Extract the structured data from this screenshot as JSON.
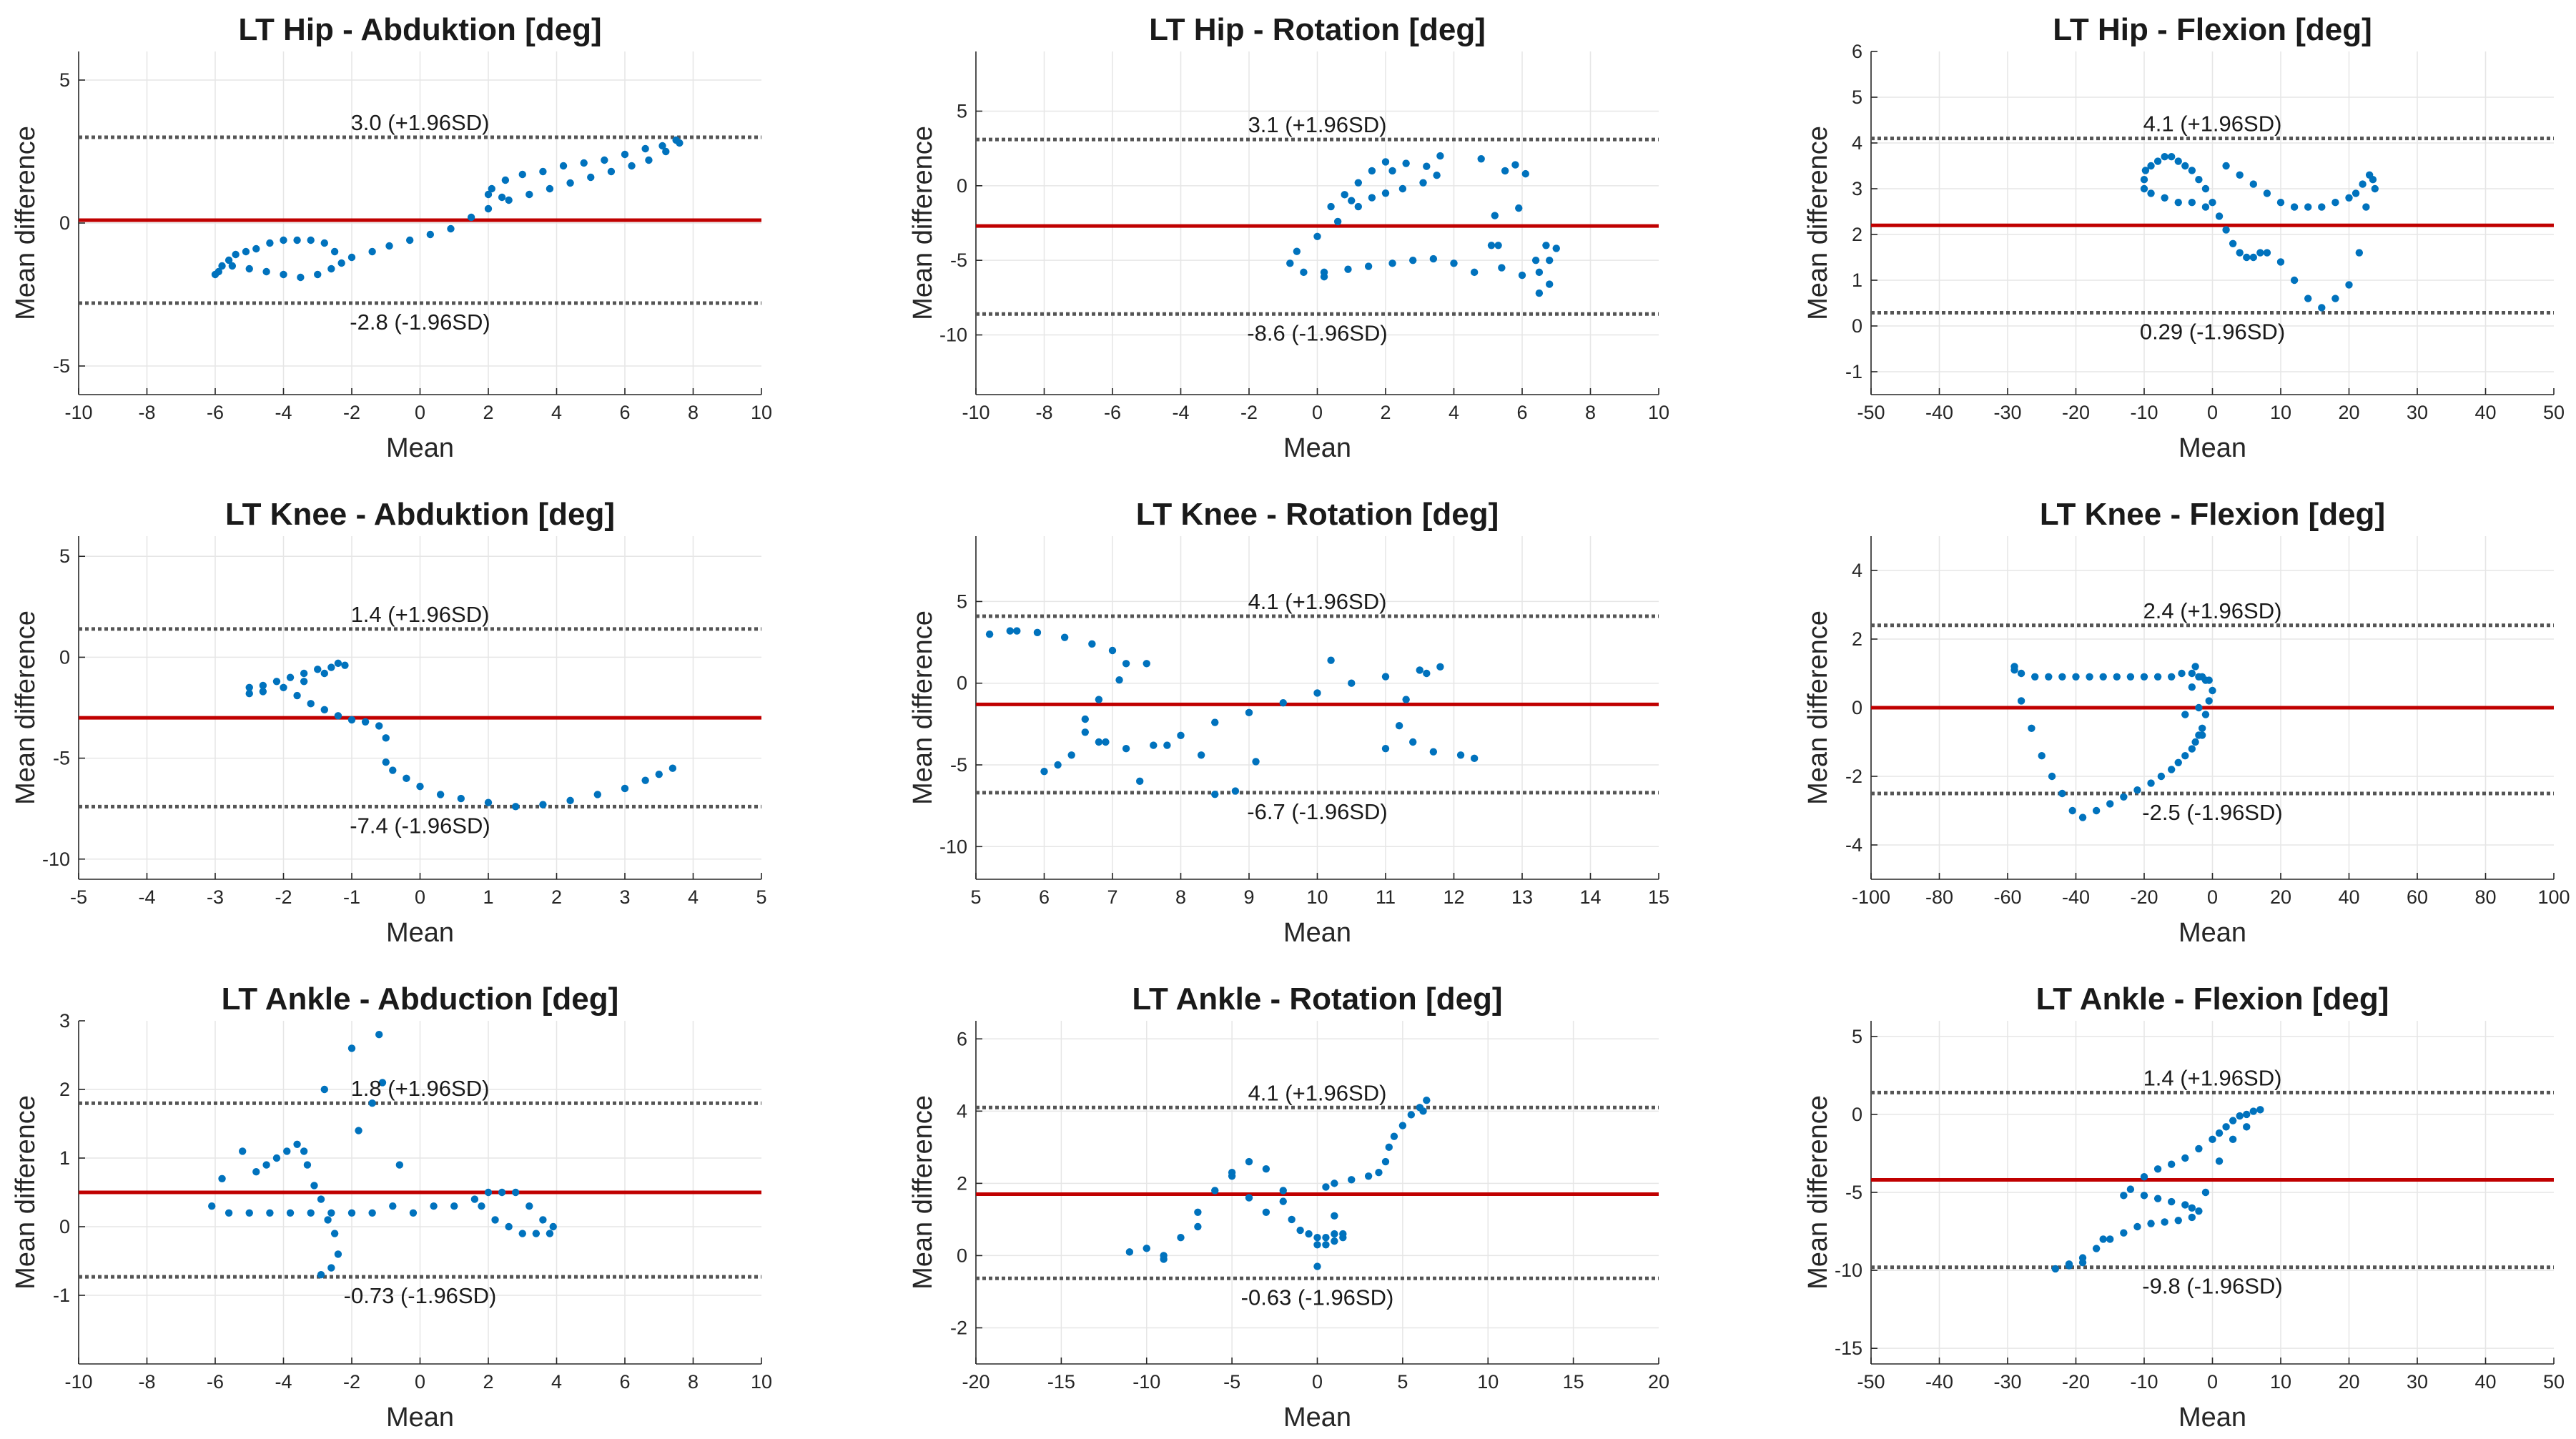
{
  "chart_data": [
    {
      "type": "scatter",
      "title": "LT Hip - Abduktion [deg]",
      "xlabel": "Mean",
      "ylabel": "Mean difference",
      "xlim": [
        -10,
        10
      ],
      "ylim": [
        -6,
        6
      ],
      "xticks": [
        -10,
        -8,
        -6,
        -4,
        -2,
        0,
        2,
        4,
        6,
        8,
        10
      ],
      "yticks": [
        -5,
        0,
        5
      ],
      "grid": true,
      "mean_diff": 0.1,
      "upper_loa": 3.0,
      "lower_loa": -2.8,
      "upper_label": "3.0 (+1.96SD)",
      "lower_label": "-2.8 (-1.96SD)",
      "x": [
        -6.0,
        -5.8,
        -5.6,
        -5.4,
        -5.1,
        -4.8,
        -4.4,
        -4.0,
        -3.6,
        -3.2,
        -2.8,
        -2.5,
        -2.3,
        -2.6,
        -3.0,
        -3.5,
        -4.0,
        -4.5,
        -5.0,
        -5.5,
        -5.9,
        -2.0,
        -1.4,
        -0.9,
        -0.3,
        0.3,
        0.9,
        1.5,
        2.0,
        2.4,
        2.1,
        2.0,
        2.5,
        3.0,
        3.6,
        4.2,
        4.8,
        5.4,
        6.0,
        6.6,
        7.1,
        7.5,
        7.6,
        7.2,
        6.7,
        6.2,
        5.6,
        5.0,
        4.4,
        3.8,
        3.2,
        2.6
      ],
      "y": [
        -1.8,
        -1.5,
        -1.3,
        -1.1,
        -1.0,
        -0.9,
        -0.7,
        -0.6,
        -0.6,
        -0.6,
        -0.7,
        -1.0,
        -1.4,
        -1.6,
        -1.8,
        -1.9,
        -1.8,
        -1.7,
        -1.6,
        -1.5,
        -1.7,
        -1.2,
        -1.0,
        -0.8,
        -0.6,
        -0.4,
        -0.2,
        0.2,
        0.5,
        0.9,
        1.2,
        1.0,
        1.5,
        1.7,
        1.8,
        2.0,
        2.1,
        2.2,
        2.4,
        2.6,
        2.7,
        2.9,
        2.8,
        2.5,
        2.2,
        2.0,
        1.8,
        1.6,
        1.4,
        1.2,
        1.0,
        0.8
      ]
    },
    {
      "type": "scatter",
      "title": "LT Hip - Rotation [deg]",
      "xlabel": "Mean",
      "ylabel": "Mean difference",
      "xlim": [
        -10,
        10
      ],
      "ylim": [
        -14,
        9
      ],
      "xticks": [
        -10,
        -8,
        -6,
        -4,
        -2,
        0,
        2,
        4,
        6,
        8,
        10
      ],
      "yticks": [
        -10,
        -5,
        0,
        5
      ],
      "grid": true,
      "mean_diff": -2.7,
      "upper_loa": 3.1,
      "lower_loa": -8.6,
      "upper_label": "3.1 (+1.96SD)",
      "lower_label": "-8.6 (-1.96SD)",
      "x": [
        0.2,
        -0.4,
        -0.8,
        -0.6,
        0.0,
        0.6,
        1.2,
        1.6,
        2.0,
        2.5,
        3.1,
        3.5,
        3.2,
        2.6,
        2.0,
        1.6,
        1.2,
        0.8,
        0.4,
        0.2,
        0.9,
        1.5,
        2.2,
        2.8,
        3.4,
        4.0,
        4.6,
        5.3,
        5.9,
        6.1,
        5.8,
        5.5,
        5.2,
        5.1,
        5.4,
        6.0,
        6.5,
        6.8,
        7.0,
        6.7,
        6.4,
        6.5,
        6.8,
        2.2,
        3.6,
        4.8,
        1.0
      ],
      "y": [
        -6.1,
        -5.8,
        -5.2,
        -4.4,
        -3.4,
        -2.4,
        -1.4,
        -0.8,
        -0.5,
        -0.2,
        0.2,
        0.7,
        1.3,
        1.5,
        1.6,
        1.0,
        0.2,
        -0.6,
        -1.4,
        -5.8,
        -5.6,
        -5.4,
        -5.2,
        -5.0,
        -4.9,
        -5.2,
        -5.8,
        -4.0,
        -1.5,
        0.8,
        1.4,
        1.0,
        -2.0,
        -4.0,
        -5.5,
        -6.0,
        -5.8,
        -5.0,
        -4.2,
        -4.0,
        -5.0,
        -7.2,
        -6.6,
        1.0,
        2.0,
        1.8,
        -1.0
      ]
    },
    {
      "type": "scatter",
      "title": "LT Hip - Flexion [deg]",
      "xlabel": "Mean",
      "ylabel": "Mean difference",
      "xlim": [
        -50,
        50
      ],
      "ylim": [
        -1.5,
        6
      ],
      "xticks": [
        -50,
        -40,
        -30,
        -20,
        -10,
        0,
        10,
        20,
        30,
        40,
        50
      ],
      "yticks": [
        -1,
        0,
        1,
        2,
        3,
        4,
        5,
        6
      ],
      "grid": true,
      "mean_diff": 2.2,
      "upper_loa": 4.1,
      "lower_loa": 0.29,
      "upper_label": "4.1 (+1.96SD)",
      "lower_label": "0.29 (-1.96SD)",
      "x": [
        -10.0,
        -9.8,
        -9.0,
        -8.0,
        -7.0,
        -6.0,
        -5.0,
        -4.0,
        -3.0,
        -2.0,
        -1.0,
        0.0,
        1.0,
        2.0,
        3.0,
        4.0,
        5.0,
        6.0,
        7.0,
        8.0,
        10.0,
        12.0,
        14.0,
        16.0,
        18.0,
        20.0,
        21.5,
        22.5,
        23.5,
        23.8,
        23.0,
        22.0,
        21.0,
        20.0,
        18.0,
        16.0,
        14.0,
        12.0,
        10.0,
        8.0,
        6.0,
        4.0,
        2.0,
        -1.0,
        -3.0,
        -5.0,
        -7.0,
        -9.0,
        -10.0
      ],
      "y": [
        3.2,
        3.4,
        3.5,
        3.6,
        3.7,
        3.7,
        3.6,
        3.5,
        3.4,
        3.2,
        3.0,
        2.7,
        2.4,
        2.1,
        1.8,
        1.6,
        1.5,
        1.5,
        1.6,
        1.6,
        1.4,
        1.0,
        0.6,
        0.4,
        0.6,
        0.9,
        1.6,
        2.6,
        3.2,
        3.0,
        3.3,
        3.1,
        2.9,
        2.8,
        2.7,
        2.6,
        2.6,
        2.6,
        2.7,
        2.9,
        3.1,
        3.3,
        3.5,
        2.6,
        2.7,
        2.7,
        2.8,
        2.9,
        3.0
      ]
    },
    {
      "type": "scatter",
      "title": "LT Knee - Abduktion [deg]",
      "xlabel": "Mean",
      "ylabel": "Mean difference",
      "xlim": [
        -5,
        5
      ],
      "ylim": [
        -11,
        6
      ],
      "xticks": [
        -5,
        -4,
        -3,
        -2,
        -1,
        0,
        1,
        2,
        3,
        4,
        5
      ],
      "yticks": [
        -10,
        -5,
        0,
        5
      ],
      "grid": true,
      "mean_diff": -3.0,
      "upper_loa": 1.4,
      "lower_loa": -7.4,
      "upper_label": "1.4 (+1.96SD)",
      "lower_label": "-7.4 (-1.96SD)",
      "x": [
        -2.5,
        -2.3,
        -2.1,
        -1.9,
        -1.7,
        -1.5,
        -1.3,
        -1.1,
        -1.2,
        -1.4,
        -1.7,
        -2.0,
        -2.3,
        -2.5,
        -1.8,
        -1.6,
        -1.4,
        -1.2,
        -1.0,
        -0.8,
        -0.6,
        -0.5,
        -0.5,
        -0.4,
        -0.2,
        0.0,
        0.3,
        0.6,
        1.0,
        1.4,
        1.8,
        2.2,
        2.6,
        3.0,
        3.3,
        3.5,
        3.7
      ],
      "y": [
        -1.5,
        -1.4,
        -1.2,
        -1.0,
        -0.8,
        -0.6,
        -0.5,
        -0.4,
        -0.3,
        -0.8,
        -1.2,
        -1.5,
        -1.7,
        -1.8,
        -1.9,
        -2.3,
        -2.6,
        -2.9,
        -3.1,
        -3.2,
        -3.4,
        -4.0,
        -5.2,
        -5.6,
        -6.0,
        -6.4,
        -6.8,
        -7.0,
        -7.2,
        -7.4,
        -7.3,
        -7.1,
        -6.8,
        -6.5,
        -6.1,
        -5.8,
        -5.5
      ]
    },
    {
      "type": "scatter",
      "title": "LT Knee - Rotation [deg]",
      "xlabel": "Mean",
      "ylabel": "Mean difference",
      "xlim": [
        5,
        15
      ],
      "ylim": [
        -12,
        9
      ],
      "xticks": [
        5,
        6,
        7,
        8,
        9,
        10,
        11,
        12,
        13,
        14,
        15
      ],
      "yticks": [
        -10,
        -5,
        0,
        5
      ],
      "grid": true,
      "mean_diff": -1.3,
      "upper_loa": 4.1,
      "lower_loa": -6.7,
      "upper_label": "4.1 (+1.96SD)",
      "lower_label": "-6.7 (-1.96SD)",
      "x": [
        5.2,
        5.5,
        5.9,
        6.3,
        6.7,
        7.0,
        7.2,
        7.1,
        6.8,
        6.6,
        6.6,
        6.8,
        7.2,
        7.6,
        8.0,
        8.5,
        9.0,
        9.5,
        10.0,
        10.5,
        11.0,
        11.5,
        11.8,
        11.6,
        11.3,
        11.2,
        11.4,
        11.7,
        12.1,
        12.3,
        6.2,
        6.4,
        6.9,
        7.4,
        7.8,
        8.3,
        8.8,
        9.1,
        8.5,
        6.0,
        5.6,
        7.5,
        10.2,
        11.0
      ],
      "y": [
        3.0,
        3.2,
        3.1,
        2.8,
        2.4,
        2.0,
        1.2,
        0.2,
        -1.0,
        -2.2,
        -3.0,
        -3.6,
        -4.0,
        -3.8,
        -3.2,
        -2.4,
        -1.8,
        -1.2,
        -0.6,
        0.0,
        0.4,
        0.8,
        1.0,
        0.6,
        -1.0,
        -2.6,
        -3.6,
        -4.2,
        -4.4,
        -4.6,
        -5.0,
        -4.4,
        -3.6,
        -6.0,
        -3.8,
        -4.4,
        -6.6,
        -4.8,
        -6.8,
        -5.4,
        3.2,
        1.2,
        1.4,
        -4.0
      ]
    },
    {
      "type": "scatter",
      "title": "LT Knee - Flexion [deg]",
      "xlabel": "Mean",
      "ylabel": "Mean difference",
      "xlim": [
        -100,
        100
      ],
      "ylim": [
        -5,
        5
      ],
      "xticks": [
        -100,
        -80,
        -60,
        -40,
        -20,
        0,
        20,
        40,
        60,
        80,
        100
      ],
      "yticks": [
        -4,
        -2,
        0,
        2,
        4
      ],
      "grid": true,
      "mean_diff": 0.0,
      "upper_loa": 2.4,
      "lower_loa": -2.5,
      "upper_label": "2.4 (+1.96SD)",
      "lower_label": "-2.5 (-1.96SD)",
      "x": [
        -58,
        -56,
        -52,
        -48,
        -44,
        -40,
        -36,
        -32,
        -28,
        -24,
        -20,
        -16,
        -12,
        -9,
        -6,
        -4,
        -3,
        -2,
        -1,
        0,
        -1,
        -2,
        -3,
        -4,
        -5,
        -6,
        -8,
        -10,
        -12,
        -15,
        -18,
        -22,
        -26,
        -30,
        -34,
        -38,
        -41,
        -44,
        -47,
        -50,
        -53,
        -56,
        -58,
        -5,
        -4,
        -8,
        -6,
        -3
      ],
      "y": [
        1.2,
        1.0,
        0.9,
        0.9,
        0.9,
        0.9,
        0.9,
        0.9,
        0.9,
        0.9,
        0.9,
        0.9,
        0.9,
        1.0,
        1.0,
        0.9,
        0.9,
        0.8,
        0.8,
        0.5,
        0.2,
        -0.2,
        -0.6,
        -0.8,
        -1.0,
        -1.2,
        -1.4,
        -1.6,
        -1.8,
        -2.0,
        -2.2,
        -2.4,
        -2.6,
        -2.8,
        -3.0,
        -3.2,
        -3.0,
        -2.5,
        -2.0,
        -1.4,
        -0.6,
        0.2,
        1.1,
        1.2,
        0.0,
        -0.2,
        0.6,
        -0.8
      ]
    },
    {
      "type": "scatter",
      "title": "LT Ankle - Abduction [deg]",
      "xlabel": "Mean",
      "ylabel": "Mean difference",
      "xlim": [
        -10,
        10
      ],
      "ylim": [
        -2,
        3
      ],
      "xticks": [
        -10,
        -8,
        -6,
        -4,
        -2,
        0,
        2,
        4,
        6,
        8,
        10
      ],
      "yticks": [
        -1,
        0,
        1,
        2,
        3
      ],
      "grid": true,
      "mean_diff": 0.5,
      "upper_loa": 1.8,
      "lower_loa": -0.73,
      "upper_label": "1.8 (+1.96SD)",
      "lower_label": "-0.73 (-1.96SD)",
      "x": [
        -6.1,
        -5.6,
        -5.0,
        -4.4,
        -3.8,
        -3.2,
        -2.6,
        -2.0,
        -1.4,
        -0.8,
        -0.2,
        0.4,
        1.0,
        1.6,
        2.0,
        2.4,
        2.8,
        3.2,
        3.6,
        3.9,
        3.8,
        3.4,
        3.0,
        2.6,
        2.2,
        1.8,
        -4.8,
        -4.5,
        -4.2,
        -3.9,
        -3.6,
        -3.4,
        -3.3,
        -3.1,
        -2.9,
        -2.7,
        -2.5,
        -2.4,
        -2.6,
        -2.9,
        -5.8,
        -5.2,
        -2.0,
        -1.2,
        -0.6,
        -2.8,
        -1.4,
        -1.8,
        -1.1
      ],
      "y": [
        0.3,
        0.2,
        0.2,
        0.2,
        0.2,
        0.2,
        0.2,
        0.2,
        0.2,
        0.3,
        0.2,
        0.3,
        0.3,
        0.4,
        0.5,
        0.5,
        0.5,
        0.3,
        0.1,
        0.0,
        -0.1,
        -0.1,
        -0.1,
        0.0,
        0.1,
        0.3,
        0.8,
        0.9,
        1.0,
        1.1,
        1.2,
        1.1,
        0.9,
        0.6,
        0.4,
        0.1,
        -0.1,
        -0.4,
        -0.6,
        -0.7,
        0.7,
        1.1,
        2.6,
        2.8,
        0.9,
        2.0,
        1.8,
        1.4,
        2.1
      ]
    },
    {
      "type": "scatter",
      "title": "LT Ankle - Rotation [deg]",
      "xlabel": "Mean",
      "ylabel": "Mean difference",
      "xlim": [
        -20,
        20
      ],
      "ylim": [
        -3,
        6.5
      ],
      "xticks": [
        -20,
        -15,
        -10,
        -5,
        0,
        5,
        10,
        15,
        20
      ],
      "yticks": [
        -2,
        0,
        2,
        4,
        6
      ],
      "grid": true,
      "mean_diff": 1.7,
      "upper_loa": 4.1,
      "lower_loa": -0.63,
      "upper_label": "4.1 (+1.96SD)",
      "lower_label": "-0.63 (-1.96SD)",
      "x": [
        -11.0,
        -10.0,
        -9.0,
        -8.0,
        -7.0,
        -6.0,
        -5.0,
        -4.0,
        -3.0,
        -2.0,
        -1.5,
        -1.0,
        -0.5,
        0.0,
        0.5,
        1.0,
        1.5,
        1.5,
        1.0,
        0.5,
        0.0,
        0.5,
        1.0,
        2.0,
        3.0,
        3.6,
        4.0,
        4.2,
        4.5,
        5.0,
        5.5,
        6.0,
        6.4,
        6.2,
        -3.0,
        -4.0,
        -5.0,
        -7.0,
        -9.0,
        -2.0,
        1.0,
        0.0
      ],
      "y": [
        0.1,
        0.2,
        -0.1,
        0.5,
        1.2,
        1.8,
        2.3,
        2.6,
        2.4,
        1.8,
        1.0,
        0.7,
        0.6,
        0.5,
        0.5,
        0.6,
        0.6,
        0.5,
        0.4,
        0.3,
        0.3,
        1.9,
        2.0,
        2.1,
        2.2,
        2.3,
        2.6,
        3.0,
        3.3,
        3.6,
        3.9,
        4.1,
        4.3,
        4.0,
        1.2,
        1.6,
        2.2,
        0.8,
        0.0,
        1.5,
        1.1,
        -0.3
      ]
    },
    {
      "type": "scatter",
      "title": "LT Ankle - Flexion [deg]",
      "xlabel": "Mean",
      "ylabel": "Mean difference",
      "xlim": [
        -50,
        50
      ],
      "ylim": [
        -16,
        6
      ],
      "xticks": [
        -50,
        -40,
        -30,
        -20,
        -10,
        0,
        10,
        20,
        30,
        40,
        50
      ],
      "yticks": [
        -15,
        -10,
        -5,
        0,
        5
      ],
      "grid": true,
      "mean_diff": -4.2,
      "upper_loa": 1.4,
      "lower_loa": -9.8,
      "upper_label": "1.4 (+1.96SD)",
      "lower_label": "-9.8 (-1.96SD)",
      "x": [
        -12,
        -10,
        -8,
        -6,
        -4,
        -2,
        0,
        1,
        2,
        3,
        4,
        5,
        6,
        7,
        -10,
        -8,
        -6,
        -4,
        -3,
        -2,
        -3,
        -5,
        -7,
        -9,
        -11,
        -13,
        -15,
        -17,
        -19,
        -21,
        -23,
        -21,
        -19,
        -16,
        -1,
        1,
        3,
        5,
        -13
      ],
      "y": [
        -4.8,
        -4.0,
        -3.5,
        -3.2,
        -2.8,
        -2.2,
        -1.6,
        -1.2,
        -0.8,
        -0.4,
        -0.1,
        0.0,
        0.2,
        0.3,
        -5.2,
        -5.4,
        -5.6,
        -5.8,
        -6.0,
        -6.2,
        -6.6,
        -6.8,
        -6.9,
        -7.0,
        -7.2,
        -7.6,
        -8.0,
        -8.6,
        -9.2,
        -9.6,
        -9.9,
        -9.7,
        -9.5,
        -8.0,
        -5.0,
        -3.0,
        -1.6,
        -0.8,
        -5.2
      ]
    }
  ]
}
